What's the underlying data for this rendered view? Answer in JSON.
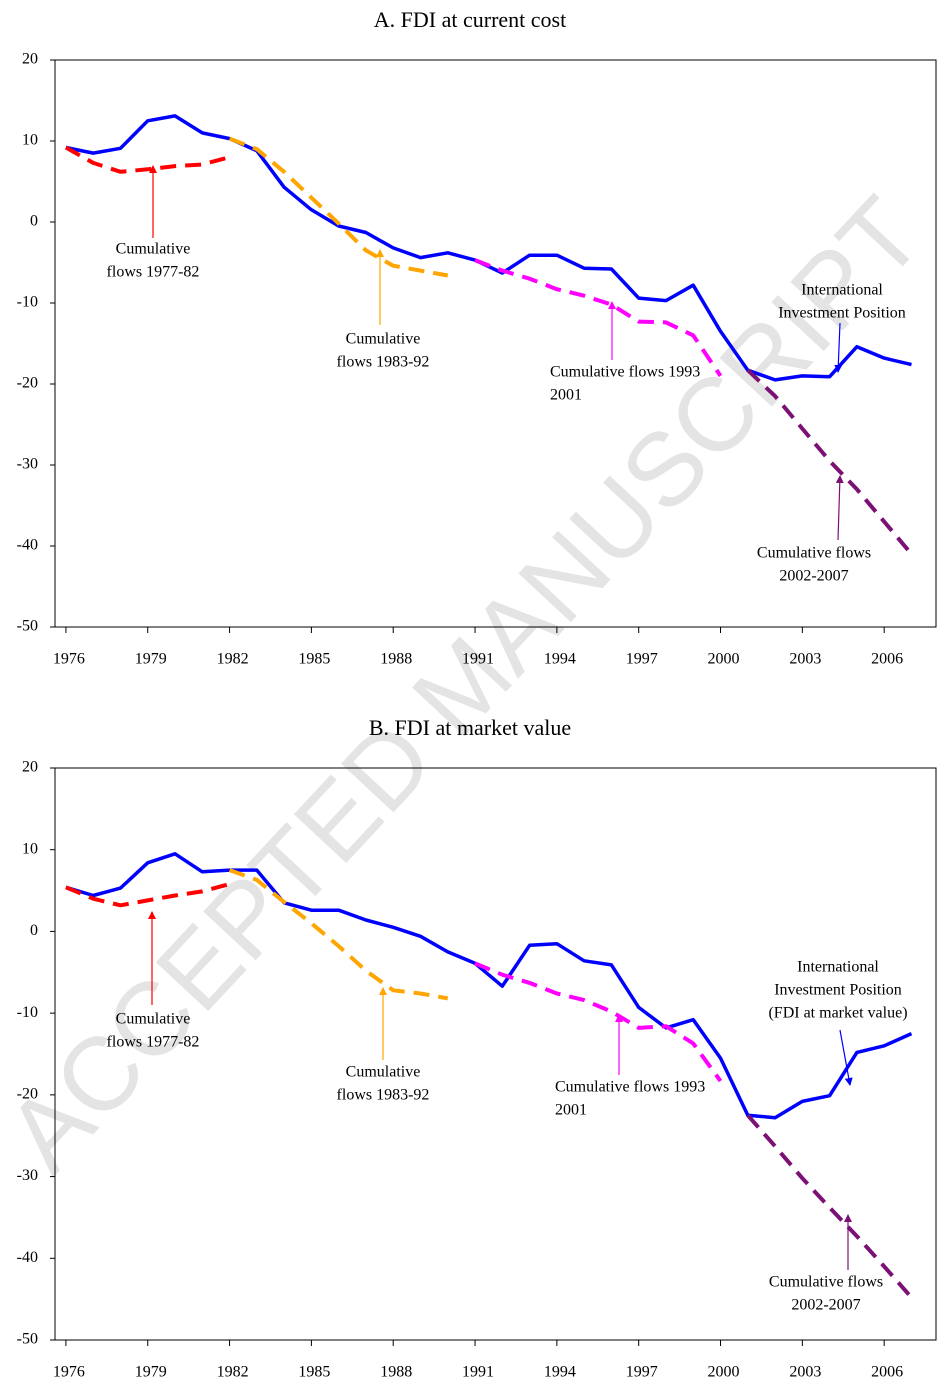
{
  "watermark": "ACCEPTED MANUSCRIPT",
  "chart_data": [
    {
      "type": "line",
      "title": "A. FDI at current cost",
      "x": [
        1976,
        1977,
        1978,
        1979,
        1980,
        1981,
        1982,
        1983,
        1984,
        1985,
        1986,
        1987,
        1988,
        1989,
        1990,
        1991,
        1992,
        1993,
        1994,
        1995,
        1996,
        1997,
        1998,
        1999,
        2000,
        2001,
        2002,
        2003,
        2004,
        2005,
        2006,
        2007
      ],
      "xlim": [
        1975.6,
        2007.9
      ],
      "xticks": [
        1976,
        1979,
        1982,
        1985,
        1988,
        1991,
        1994,
        1997,
        2000,
        2003,
        2006
      ],
      "ylim": [
        -50,
        20
      ],
      "yticks": [
        -50,
        -40,
        -30,
        -20,
        -10,
        0,
        10,
        20
      ],
      "series": [
        {
          "color": "#0000ff",
          "dash": false,
          "values": [
            9.2,
            8.5,
            9.1,
            12.5,
            13.1,
            11.0,
            10.3,
            8.8,
            4.3,
            1.5,
            -0.5,
            -1.3,
            -3.2,
            -4.4,
            -3.8,
            -4.7,
            -6.3,
            -4.1,
            -4.1,
            -5.7,
            -5.8,
            -9.4,
            -9.7,
            -7.8,
            -13.5,
            -18.3,
            -19.5,
            -19.0,
            -19.1,
            -15.4,
            -16.8,
            -17.6
          ]
        },
        {
          "color": "#ff0000",
          "dash": true,
          "values": [
            9.2,
            7.3,
            6.2,
            6.5,
            6.9,
            7.1,
            8.0,
            null,
            null,
            null,
            null,
            null,
            null,
            null,
            null,
            null,
            null,
            null,
            null,
            null,
            null,
            null,
            null,
            null,
            null,
            null,
            null,
            null,
            null,
            null,
            null,
            null
          ]
        },
        {
          "color": "#ffa500",
          "dash": true,
          "values": [
            null,
            null,
            null,
            null,
            null,
            null,
            10.3,
            9.0,
            6.2,
            3.0,
            -0.2,
            -3.5,
            -5.4,
            -6.0,
            -6.6,
            null,
            null,
            null,
            null,
            null,
            null,
            null,
            null,
            null,
            null,
            null,
            null,
            null,
            null,
            null,
            null,
            null
          ]
        },
        {
          "color": "#ff00ff",
          "dash": true,
          "values": [
            null,
            null,
            null,
            null,
            null,
            null,
            null,
            null,
            null,
            null,
            null,
            null,
            null,
            null,
            null,
            -4.7,
            -6.0,
            -7.0,
            -8.3,
            -9.1,
            -10.2,
            -12.3,
            -12.4,
            -14.0,
            -19.0,
            null,
            null,
            null,
            null,
            null,
            null,
            null
          ]
        },
        {
          "color": "#7b1075",
          "dash": true,
          "values": [
            null,
            null,
            null,
            null,
            null,
            null,
            null,
            null,
            null,
            null,
            null,
            null,
            null,
            null,
            null,
            null,
            null,
            null,
            null,
            null,
            null,
            null,
            null,
            null,
            null,
            -18.3,
            -21.5,
            -25.5,
            -29.5,
            -33.0,
            -37.0,
            -41.0
          ]
        }
      ],
      "annotations": [
        {
          "color": "#ff0000",
          "text": [
            "Cumulative",
            "flows 1977-82"
          ]
        },
        {
          "color": "#ffa500",
          "text": [
            "Cumulative",
            "flows 1983-92"
          ]
        },
        {
          "color": "#ff00ff",
          "text": [
            "Cumulative flows 1993",
            "2001"
          ]
        },
        {
          "color": "#0000ff",
          "text": [
            "International",
            "Investment Position"
          ]
        },
        {
          "color": "#7b1075",
          "text": [
            "Cumulative flows",
            "2002-2007"
          ]
        }
      ]
    },
    {
      "type": "line",
      "title": "B. FDI at market value",
      "x": [
        1976,
        1977,
        1978,
        1979,
        1980,
        1981,
        1982,
        1983,
        1984,
        1985,
        1986,
        1987,
        1988,
        1989,
        1990,
        1991,
        1992,
        1993,
        1994,
        1995,
        1996,
        1997,
        1998,
        1999,
        2000,
        2001,
        2002,
        2003,
        2004,
        2005,
        2006,
        2007
      ],
      "xlim": [
        1975.6,
        2007.9
      ],
      "xticks": [
        1976,
        1979,
        1982,
        1985,
        1988,
        1991,
        1994,
        1997,
        2000,
        2003,
        2006
      ],
      "ylim": [
        -50,
        20
      ],
      "yticks": [
        -50,
        -40,
        -30,
        -20,
        -10,
        0,
        10,
        20
      ],
      "series": [
        {
          "color": "#0000ff",
          "dash": false,
          "values": [
            5.4,
            4.4,
            5.3,
            8.4,
            9.5,
            7.3,
            7.5,
            7.5,
            3.5,
            2.6,
            2.6,
            1.4,
            0.5,
            -0.6,
            -2.5,
            -3.9,
            -6.7,
            -1.7,
            -1.5,
            -3.6,
            -4.1,
            -9.3,
            -11.8,
            -10.8,
            -15.5,
            -22.5,
            -22.8,
            -20.8,
            -20.1,
            -14.8,
            -14.0,
            -12.5
          ]
        },
        {
          "color": "#ff0000",
          "dash": true,
          "values": [
            5.4,
            4.0,
            3.2,
            3.8,
            4.4,
            4.9,
            5.8,
            null,
            null,
            null,
            null,
            null,
            null,
            null,
            null,
            null,
            null,
            null,
            null,
            null,
            null,
            null,
            null,
            null,
            null,
            null,
            null,
            null,
            null,
            null,
            null,
            null
          ]
        },
        {
          "color": "#ffa500",
          "dash": true,
          "values": [
            null,
            null,
            null,
            null,
            null,
            null,
            7.5,
            6.3,
            3.6,
            1.0,
            -1.8,
            -4.8,
            -7.2,
            -7.6,
            -8.2,
            null,
            null,
            null,
            null,
            null,
            null,
            null,
            null,
            null,
            null,
            null,
            null,
            null,
            null,
            null,
            null,
            null
          ]
        },
        {
          "color": "#ff00ff",
          "dash": true,
          "values": [
            null,
            null,
            null,
            null,
            null,
            null,
            null,
            null,
            null,
            null,
            null,
            null,
            null,
            null,
            null,
            -3.9,
            -5.3,
            -6.3,
            -7.6,
            -8.4,
            -9.8,
            -11.8,
            -11.6,
            -13.7,
            -18.3,
            null,
            null,
            null,
            null,
            null,
            null,
            null
          ]
        },
        {
          "color": "#7b1075",
          "dash": true,
          "values": [
            null,
            null,
            null,
            null,
            null,
            null,
            null,
            null,
            null,
            null,
            null,
            null,
            null,
            null,
            null,
            null,
            null,
            null,
            null,
            null,
            null,
            null,
            null,
            null,
            null,
            -22.5,
            -26.3,
            -30.2,
            -33.8,
            -37.3,
            -41.0,
            -44.8
          ]
        }
      ],
      "annotations": [
        {
          "color": "#ff0000",
          "text": [
            "Cumulative",
            "flows 1977-82"
          ]
        },
        {
          "color": "#ffa500",
          "text": [
            "Cumulative",
            "flows 1983-92"
          ]
        },
        {
          "color": "#ff00ff",
          "text": [
            "Cumulative flows 1993",
            "2001"
          ]
        },
        {
          "color": "#0000ff",
          "text": [
            "International",
            "Investment Position",
            "(FDI at market value)"
          ]
        },
        {
          "color": "#7b1075",
          "text": [
            "Cumulative flows",
            "2002-2007"
          ]
        }
      ]
    }
  ]
}
